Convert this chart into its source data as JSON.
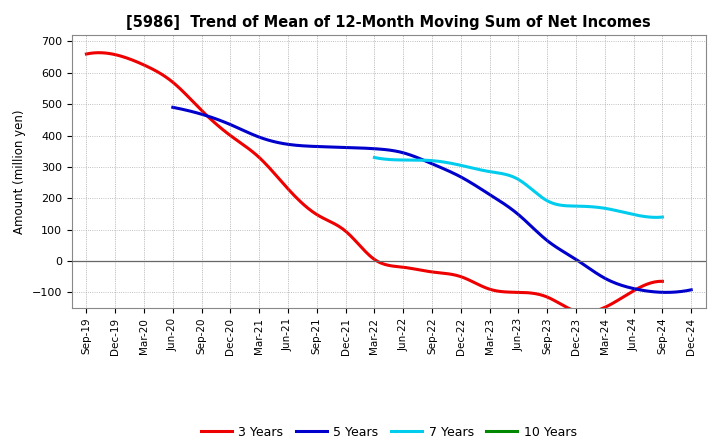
{
  "title": "[5986]  Trend of Mean of 12-Month Moving Sum of Net Incomes",
  "ylabel": "Amount (million yen)",
  "background_color": "#ffffff",
  "plot_bg_color": "#ffffff",
  "x_labels": [
    "Sep-19",
    "Dec-19",
    "Mar-20",
    "Jun-20",
    "Sep-20",
    "Dec-20",
    "Mar-21",
    "Jun-21",
    "Sep-21",
    "Dec-21",
    "Mar-22",
    "Jun-22",
    "Sep-22",
    "Dec-22",
    "Mar-23",
    "Jun-23",
    "Sep-23",
    "Dec-23",
    "Mar-24",
    "Jun-24",
    "Sep-24",
    "Dec-24"
  ],
  "ylim": [
    -150,
    720
  ],
  "yticks": [
    -100,
    0,
    100,
    200,
    300,
    400,
    500,
    600,
    700
  ],
  "series": {
    "3 Years": {
      "color": "#ee0000",
      "data_x": [
        0,
        1,
        2,
        3,
        4,
        5,
        6,
        7,
        8,
        9,
        10,
        11,
        12,
        13,
        14,
        15,
        16,
        17,
        18,
        19,
        20
      ],
      "data_y": [
        660,
        658,
        625,
        570,
        480,
        400,
        330,
        230,
        148,
        95,
        5,
        -20,
        -35,
        -50,
        -90,
        -100,
        -115,
        -160,
        -148,
        -95,
        -65
      ]
    },
    "5 Years": {
      "color": "#0000cc",
      "data_x": [
        3,
        4,
        5,
        6,
        7,
        8,
        9,
        10,
        11,
        12,
        13,
        14,
        15,
        16,
        17,
        18,
        19,
        20,
        21
      ],
      "data_y": [
        490,
        468,
        435,
        395,
        372,
        365,
        362,
        358,
        345,
        310,
        268,
        212,
        148,
        65,
        5,
        -55,
        -88,
        -100,
        -92
      ]
    },
    "7 Years": {
      "color": "#00ccee",
      "data_x": [
        10,
        11,
        12,
        13,
        14,
        15,
        16,
        17,
        18,
        19,
        20
      ],
      "data_y": [
        330,
        322,
        320,
        305,
        285,
        260,
        192,
        175,
        168,
        148,
        140
      ]
    },
    "10 Years": {
      "color": "#008800",
      "data_x": [],
      "data_y": []
    }
  },
  "legend_entries": [
    "3 Years",
    "5 Years",
    "7 Years",
    "10 Years"
  ],
  "legend_colors": [
    "#ee0000",
    "#0000cc",
    "#00ccee",
    "#008800"
  ]
}
